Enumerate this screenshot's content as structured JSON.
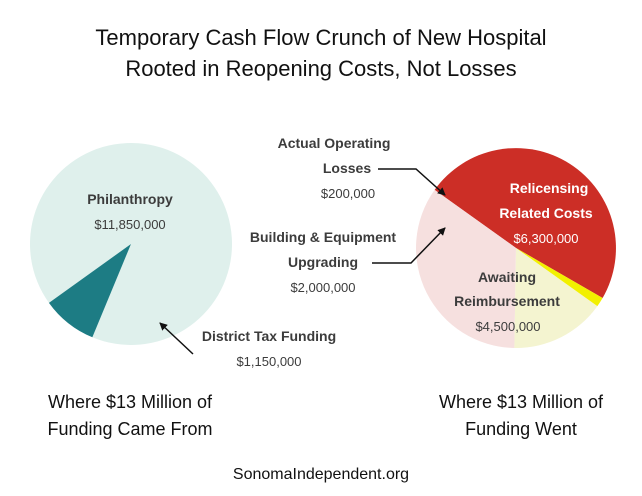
{
  "title": {
    "line1": "Temporary Cash Flow Crunch of New Hospital",
    "line2": "Rooted in Reopening Costs, Not Losses"
  },
  "chart_data": [
    {
      "type": "pie",
      "caption": [
        "Where $13 Million of",
        "Funding Came From"
      ],
      "slices": [
        {
          "name": "Philanthropy",
          "value_label": "$11,850,000",
          "value": 11850000,
          "color": "#dff0ec"
        },
        {
          "name": "District Tax Funding",
          "value_label": "$1,150,000",
          "value": 1150000,
          "color": "#1d7c84"
        }
      ]
    },
    {
      "type": "pie",
      "caption": [
        "Where $13 Million of",
        "Funding Went"
      ],
      "slices": [
        {
          "name": "Relicensing Related Costs",
          "name_lines": [
            "Relicensing",
            "Related Costs"
          ],
          "value_label": "$6,300,000",
          "value": 6300000,
          "color": "#cc2e26"
        },
        {
          "name": "Awaiting Reimbursement",
          "name_lines": [
            "Awaiting",
            "Reimbursement"
          ],
          "value_label": "$4,500,000",
          "value": 4500000,
          "color": "#f6e0df"
        },
        {
          "name": "Building & Equipment Upgrading",
          "name_lines": [
            "Building & Equipment",
            "Upgrading"
          ],
          "value_label": "$2,000,000",
          "value": 2000000,
          "color": "#f4f4d0"
        },
        {
          "name": "Actual Operating Losses",
          "name_lines": [
            "Actual Operating",
            "Losses"
          ],
          "value_label": "$200,000",
          "value": 200000,
          "color": "#f2f000"
        }
      ]
    }
  ],
  "footer": "SonomaIndependent.org"
}
